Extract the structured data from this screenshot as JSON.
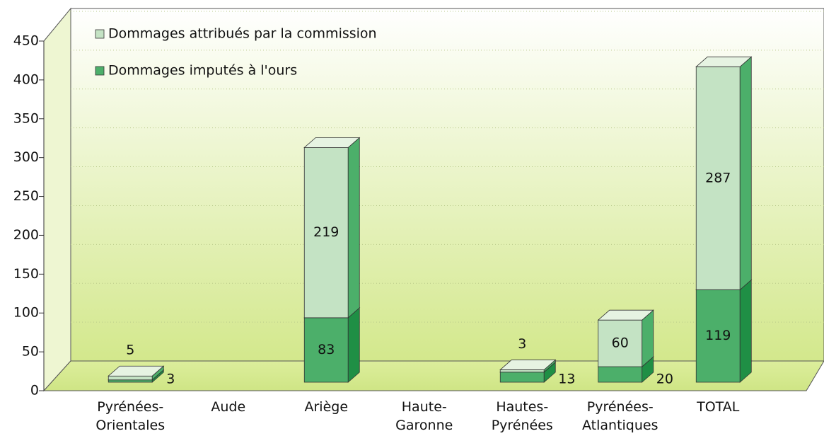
{
  "chart_data": {
    "type": "bar3d_stacked",
    "categories": [
      "Pyrénées-\nOrientales",
      "Aude",
      "Ariège",
      "Haute-\nGaronne",
      "Hautes-\nPyrénées",
      "Pyrénées-\nAtlantiques",
      "TOTAL"
    ],
    "series": [
      {
        "name": "Dommages imputés à l'ours",
        "color": "#4caf6a",
        "values": [
          3,
          null,
          83,
          null,
          13,
          20,
          119
        ]
      },
      {
        "name": "Dommages attribués par la commission",
        "color": "#c4e3c4",
        "values": [
          5,
          null,
          219,
          null,
          3,
          60,
          287
        ]
      }
    ],
    "ylim": [
      0,
      450
    ],
    "yticks": [
      0,
      50,
      100,
      150,
      200,
      250,
      300,
      350,
      400,
      450
    ],
    "grid": true,
    "legend": "top-left"
  }
}
